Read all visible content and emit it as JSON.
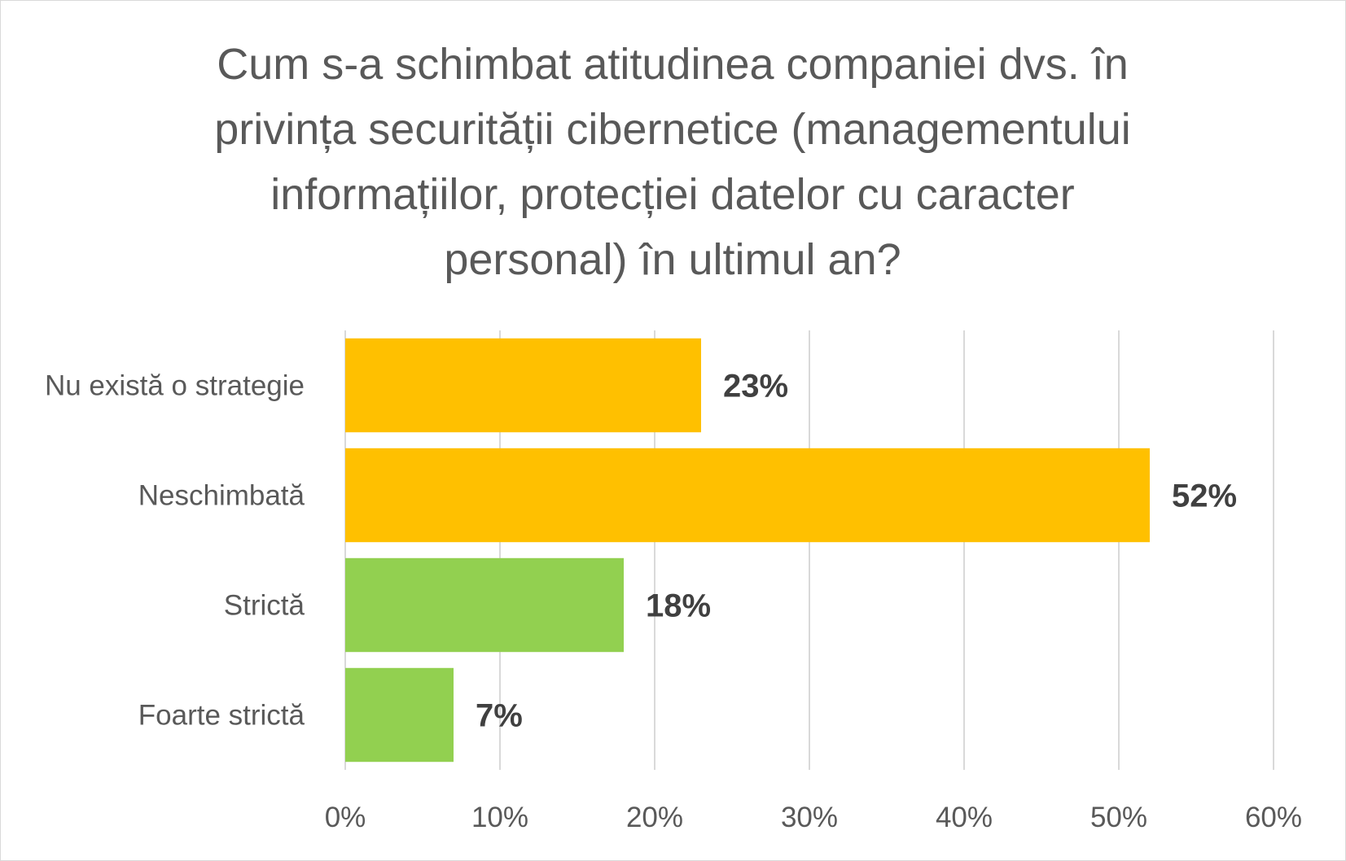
{
  "chart_data": {
    "type": "bar",
    "orientation": "horizontal",
    "title_lines": [
      "Cum s-a schimbat atitudinea companiei dvs. în",
      "privința securității cibernetice (managementului",
      "informațiilor, protecției datelor cu caracter",
      "personal) în ultimul an?"
    ],
    "categories": [
      "Nu există o strategie",
      "Neschimbată",
      "Strictă",
      "Foarte strictă"
    ],
    "values": [
      23,
      52,
      18,
      7
    ],
    "data_labels": [
      "23%",
      "52%",
      "18%",
      "7%"
    ],
    "bar_colors": [
      "#FFC000",
      "#FFC000",
      "#92D050",
      "#92D050"
    ],
    "xlim": [
      0,
      60
    ],
    "x_ticks": [
      0,
      10,
      20,
      30,
      40,
      50,
      60
    ],
    "x_tick_labels": [
      "0%",
      "10%",
      "20%",
      "30%",
      "40%",
      "50%",
      "60%"
    ],
    "xlabel": "",
    "ylabel": "",
    "grid": "vertical",
    "legend": "none"
  }
}
